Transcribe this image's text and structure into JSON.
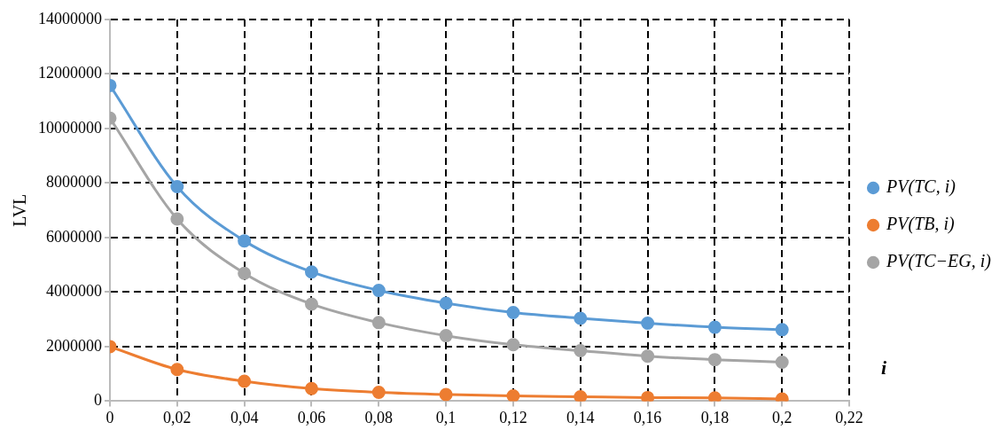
{
  "chart_data": {
    "type": "line",
    "ylabel": "LVL",
    "xlabel": "i",
    "x": [
      0,
      0.02,
      0.04,
      0.06,
      0.08,
      0.1,
      0.12,
      0.14,
      0.16,
      0.18,
      0.2
    ],
    "series": [
      {
        "name": "PV(TC, i)",
        "color": "#5b9bd5",
        "values": [
          11580000,
          7870000,
          5880000,
          4740000,
          4060000,
          3590000,
          3250000,
          3040000,
          2860000,
          2710000,
          2620000
        ]
      },
      {
        "name": "PV(TB, i)",
        "color": "#ed7d31",
        "values": [
          2000000,
          1160000,
          730000,
          460000,
          320000,
          240000,
          190000,
          160000,
          130000,
          120000,
          80000
        ]
      },
      {
        "name": "PV(TC−EG, i)",
        "color": "#a5a5a5",
        "values": [
          10380000,
          6680000,
          4690000,
          3560000,
          2880000,
          2400000,
          2070000,
          1850000,
          1650000,
          1520000,
          1430000
        ]
      }
    ],
    "xlim": [
      0,
      0.22
    ],
    "xticks": [
      0,
      {
        "value": 0.02,
        "label": "0,02"
      },
      {
        "value": 0.04,
        "label": "0,04"
      },
      {
        "value": 0.06,
        "label": "0,06"
      },
      {
        "value": 0.08,
        "label": "0,08"
      },
      {
        "value": 0.1,
        "label": "0,1"
      },
      {
        "value": 0.12,
        "label": "0,12"
      },
      {
        "value": 0.14,
        "label": "0,14"
      },
      {
        "value": 0.16,
        "label": "0,16"
      },
      {
        "value": 0.18,
        "label": "0,18"
      },
      {
        "value": 0.2,
        "label": "0,2"
      },
      {
        "value": 0.22,
        "label": "0,22"
      }
    ],
    "ylim": [
      0,
      14000000
    ],
    "yticks": [
      0,
      2000000,
      4000000,
      6000000,
      8000000,
      10000000,
      12000000,
      14000000
    ],
    "grid": true,
    "legend": "right",
    "marker": "circle",
    "line_style": "solid"
  }
}
